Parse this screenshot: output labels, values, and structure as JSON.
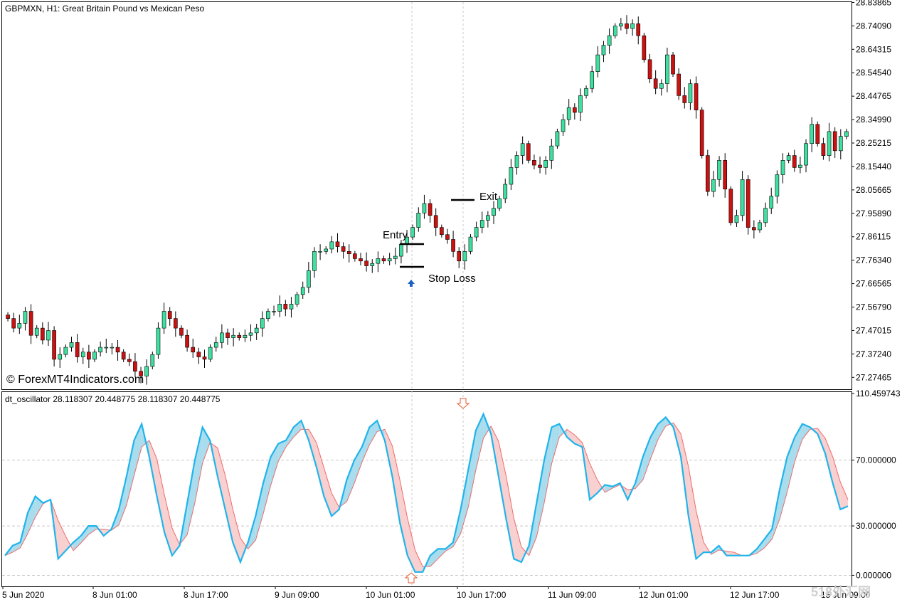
{
  "colors": {
    "bull": "#3ee0a0",
    "bear": "#cc1111",
    "wick": "#000000",
    "osc_main": "#1fb4ec",
    "osc_signal": "#ee6b6b",
    "fill_up": "#a9dcec",
    "fill_down": "#f8d0d0",
    "grid": "#c8c8c8",
    "arrow_buy": "#1a62c4",
    "arrow_osc": "#e85a30"
  },
  "header": {
    "main": "GBPMXN, H1:  Great Britain Pound vs Mexican Peso",
    "osc": "dt_oscillator 28.118307 20.448775 28.118307 20.448775",
    "watermark_main": "© ForexMT4Indicators.com",
    "watermark_corner": "518外汇网"
  },
  "annotations": {
    "entry": "Entry",
    "exit": "Exit",
    "stop_loss": "Stop Loss"
  },
  "chart_data": [
    {
      "type": "candlestick",
      "symbol": "GBPMXN",
      "timeframe": "H1",
      "price_ticks": [
        "28.83865",
        "28.74090",
        "28.64315",
        "28.54540",
        "28.44765",
        "28.34990",
        "28.25215",
        "28.15440",
        "28.05665",
        "27.95890",
        "27.86115",
        "27.76340",
        "27.66565",
        "27.56790",
        "27.47015",
        "27.37240",
        "27.27465"
      ],
      "time_ticks": [
        "5 Jun 2020",
        "8 Jun 01:00",
        "8 Jun 17:00",
        "9 Jun 09:00",
        "10 Jun 01:00",
        "10 Jun 17:00",
        "11 Jun 09:00",
        "12 Jun 01:00",
        "12 Jun 17:00",
        "15 Jun 09:00"
      ],
      "ylim": [
        27.225,
        28.84
      ],
      "closes": [
        27.52,
        27.48,
        27.5,
        27.55,
        27.45,
        27.48,
        27.43,
        27.47,
        27.35,
        27.37,
        27.4,
        27.42,
        27.36,
        27.38,
        27.35,
        27.38,
        27.4,
        27.4,
        27.4,
        27.38,
        27.35,
        27.34,
        27.3,
        27.28,
        27.32,
        27.37,
        27.48,
        27.55,
        27.52,
        27.48,
        27.45,
        27.4,
        27.38,
        27.36,
        27.35,
        27.4,
        27.42,
        27.46,
        27.44,
        27.45,
        27.44,
        27.45,
        27.46,
        27.48,
        27.52,
        27.55,
        27.55,
        27.58,
        27.56,
        27.58,
        27.62,
        27.65,
        27.72,
        27.8,
        27.8,
        27.81,
        27.84,
        27.82,
        27.8,
        27.79,
        27.77,
        27.76,
        27.74,
        27.75,
        27.77,
        27.76,
        27.77,
        27.78,
        27.83,
        27.86,
        27.9,
        27.96,
        28.0,
        27.95,
        27.9,
        27.87,
        27.85,
        27.8,
        27.76,
        27.8,
        27.86,
        27.9,
        27.93,
        27.95,
        27.98,
        28.02,
        28.08,
        28.15,
        28.2,
        28.25,
        28.18,
        28.16,
        28.15,
        28.18,
        28.24,
        28.3,
        28.35,
        28.4,
        28.38,
        28.45,
        28.48,
        28.55,
        28.62,
        28.66,
        28.7,
        28.74,
        28.75,
        28.73,
        28.75,
        28.7,
        28.6,
        28.52,
        28.48,
        28.5,
        28.62,
        28.54,
        28.45,
        28.42,
        28.5,
        28.39,
        28.2,
        28.05,
        28.1,
        28.18,
        28.06,
        27.92,
        27.95,
        28.1,
        27.9,
        27.89,
        27.92,
        27.98,
        28.03,
        28.12,
        28.18,
        28.2,
        28.15,
        28.16,
        28.25,
        28.33,
        28.25,
        28.2,
        28.3,
        28.22,
        28.28,
        28.3
      ],
      "opens_note": "each candle opens at the previous close"
    },
    {
      "type": "line",
      "name": "dt_oscillator",
      "ylim": [
        -5,
        110.459743
      ],
      "y_ticks": [
        "110.459743",
        "70.000000",
        "30.000000",
        "0.000000"
      ],
      "levels": [
        70,
        30,
        0
      ],
      "series_main": [
        12,
        18,
        20,
        38,
        48,
        44,
        46,
        10,
        15,
        20,
        24,
        30,
        30,
        24,
        28,
        40,
        60,
        82,
        92,
        72,
        48,
        26,
        12,
        18,
        44,
        70,
        90,
        82,
        60,
        40,
        20,
        8,
        20,
        36,
        56,
        72,
        80,
        82,
        90,
        94,
        82,
        66,
        48,
        36,
        40,
        58,
        70,
        78,
        90,
        94,
        82,
        60,
        32,
        12,
        2,
        2,
        12,
        16,
        16,
        20,
        40,
        64,
        88,
        98,
        86,
        60,
        34,
        10,
        8,
        18,
        44,
        70,
        90,
        92,
        84,
        80,
        78,
        46,
        50,
        55,
        54,
        56,
        46,
        56,
        72,
        84,
        92,
        96,
        90,
        72,
        36,
        10,
        14,
        14,
        18,
        12,
        12,
        12,
        12,
        16,
        22,
        28,
        52,
        72,
        84,
        92,
        90,
        86,
        74,
        56,
        40,
        42
      ]
    }
  ]
}
